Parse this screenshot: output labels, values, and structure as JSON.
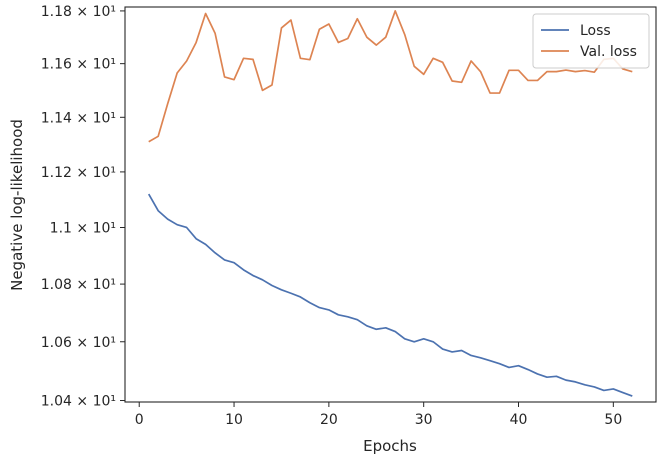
{
  "chart_data": {
    "type": "line",
    "xlabel": "Epochs",
    "ylabel": "Negative log-likelihood",
    "xlim": [
      -1.5,
      54.5
    ],
    "ylim": [
      10.395,
      11.815
    ],
    "x_ticks": [
      0,
      10,
      20,
      30,
      40,
      50
    ],
    "y_ticks": [
      {
        "value": 10.4,
        "label": "1.04 × 10¹"
      },
      {
        "value": 10.6,
        "label": "1.06 × 10¹"
      },
      {
        "value": 10.8,
        "label": "1.08 × 10¹"
      },
      {
        "value": 11.0,
        "label": "1.1 × 10¹"
      },
      {
        "value": 11.2,
        "label": "1.12 × 10¹"
      },
      {
        "value": 11.4,
        "label": "1.14 × 10¹"
      },
      {
        "value": 11.6,
        "label": "1.16 × 10¹"
      },
      {
        "value": 11.8,
        "label": "1.18 × 10¹"
      }
    ],
    "y_scale": "log",
    "grid": false,
    "legend_position": "top-right",
    "series": [
      {
        "name": "Loss",
        "color": "#4c72b0",
        "x": [
          1,
          2,
          3,
          4,
          5,
          6,
          7,
          8,
          9,
          10,
          11,
          12,
          13,
          14,
          15,
          16,
          17,
          18,
          19,
          20,
          21,
          22,
          23,
          24,
          25,
          26,
          27,
          28,
          29,
          30,
          31,
          32,
          33,
          34,
          35,
          36,
          37,
          38,
          39,
          40,
          41,
          42,
          43,
          44,
          45,
          46,
          47,
          48,
          49,
          50,
          51,
          52
        ],
        "values": [
          11.12,
          11.06,
          11.03,
          11.01,
          11.0,
          10.96,
          10.94,
          10.91,
          10.885,
          10.875,
          10.85,
          10.83,
          10.815,
          10.795,
          10.78,
          10.768,
          10.755,
          10.735,
          10.718,
          10.71,
          10.693,
          10.686,
          10.676,
          10.655,
          10.643,
          10.648,
          10.635,
          10.61,
          10.6,
          10.61,
          10.6,
          10.575,
          10.565,
          10.57,
          10.553,
          10.545,
          10.535,
          10.525,
          10.512,
          10.518,
          10.505,
          10.49,
          10.479,
          10.482,
          10.469,
          10.463,
          10.453,
          10.446,
          10.434,
          10.439,
          10.427,
          10.415
        ]
      },
      {
        "name": "Val. loss",
        "color": "#dd8452",
        "x": [
          1,
          2,
          3,
          4,
          5,
          6,
          7,
          8,
          9,
          10,
          11,
          12,
          13,
          14,
          15,
          16,
          17,
          18,
          19,
          20,
          21,
          22,
          23,
          24,
          25,
          26,
          27,
          28,
          29,
          30,
          31,
          32,
          33,
          34,
          35,
          36,
          37,
          38,
          39,
          40,
          41,
          42,
          43,
          44,
          45,
          46,
          47,
          48,
          49,
          50,
          51,
          52
        ],
        "values": [
          11.31,
          11.33,
          11.45,
          11.565,
          11.61,
          11.68,
          11.79,
          11.715,
          11.55,
          11.54,
          11.62,
          11.616,
          11.5,
          11.52,
          11.735,
          11.765,
          11.62,
          11.615,
          11.73,
          11.75,
          11.68,
          11.695,
          11.77,
          11.7,
          11.67,
          11.7,
          11.8,
          11.71,
          11.59,
          11.56,
          11.62,
          11.605,
          11.535,
          11.53,
          11.61,
          11.57,
          11.49,
          11.49,
          11.575,
          11.575,
          11.537,
          11.537,
          11.57,
          11.57,
          11.576,
          11.57,
          11.574,
          11.568,
          11.616,
          11.62,
          11.58,
          11.57
        ]
      }
    ]
  }
}
